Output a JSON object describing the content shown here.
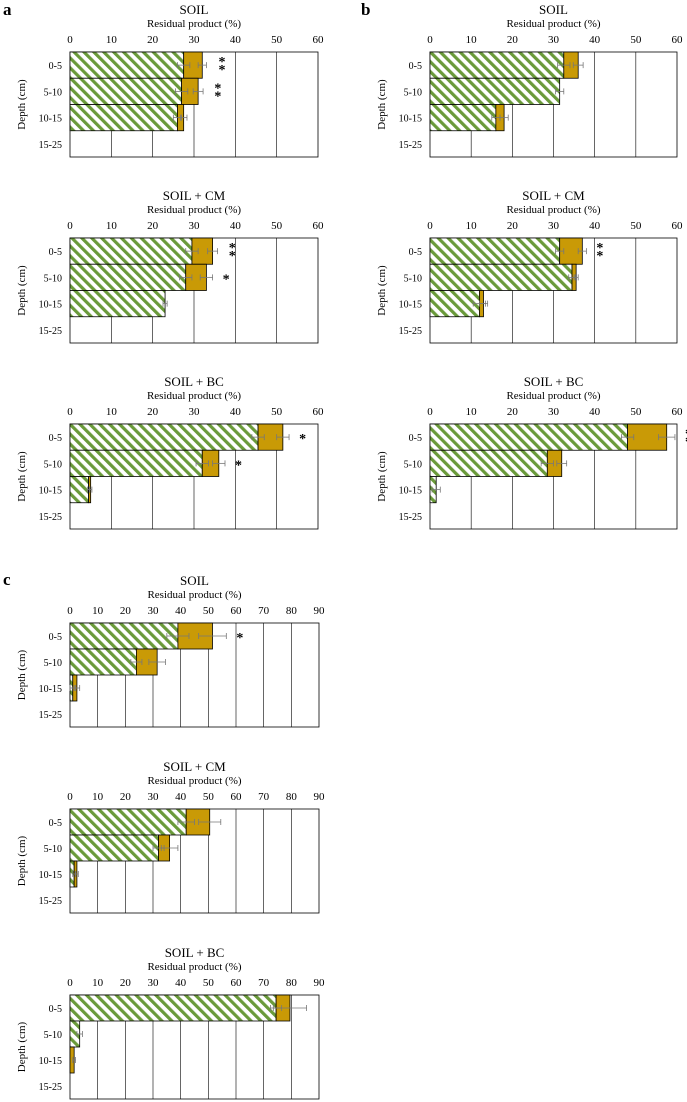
{
  "colors": {
    "hatch_green": "#6a9a3a",
    "gold": "#c99a06",
    "frame": "#000000",
    "grid": "#000000",
    "error_bar": "#777777"
  },
  "chart_data": [
    {
      "panel": "a",
      "type": "bar",
      "orientation": "horizontal",
      "stacked": true,
      "title": "SOIL",
      "xlabel": "Residual product (%)",
      "ylabel": "Depth (cm)",
      "categories": [
        "0-5",
        "5-10",
        "10-15",
        "15-25"
      ],
      "xlim": [
        0,
        60
      ],
      "xticks": [
        0,
        10,
        20,
        30,
        40,
        50,
        60
      ],
      "grid": "vertical",
      "series": [
        {
          "style": "green-hatched",
          "values": [
            27.5,
            27,
            26,
            null
          ],
          "error": [
            1.5,
            1.5,
            1,
            null
          ]
        },
        {
          "style": "gold-solid",
          "values": [
            4.5,
            4,
            1.5,
            null
          ],
          "error": [
            1,
            1.2,
            0.8,
            null
          ]
        }
      ],
      "significance": [
        "**",
        "**",
        "",
        ""
      ]
    },
    {
      "panel": "b",
      "type": "bar",
      "orientation": "horizontal",
      "stacked": true,
      "title": "SOIL",
      "xlabel": "Residual product (%)",
      "ylabel": "Depth (cm)",
      "categories": [
        "0-5",
        "5-10",
        "10-15",
        "15-25"
      ],
      "xlim": [
        0,
        60
      ],
      "xticks": [
        0,
        10,
        20,
        30,
        40,
        50,
        60
      ],
      "grid": "vertical",
      "series": [
        {
          "style": "green-hatched",
          "values": [
            32.5,
            31.5,
            16,
            null
          ],
          "error": [
            1.5,
            1,
            1,
            null
          ]
        },
        {
          "style": "gold-solid",
          "values": [
            3.5,
            0,
            2,
            null
          ],
          "error": [
            1.2,
            0,
            1,
            null
          ]
        }
      ],
      "significance": [
        "",
        "",
        "",
        ""
      ]
    },
    {
      "panel": "a",
      "type": "bar",
      "orientation": "horizontal",
      "stacked": true,
      "title": "SOIL + CM",
      "xlabel": "Residual product (%)",
      "ylabel": "Depth (cm)",
      "categories": [
        "0-5",
        "5-10",
        "10-15",
        "15-25"
      ],
      "xlim": [
        0,
        60
      ],
      "xticks": [
        0,
        10,
        20,
        30,
        40,
        50,
        60
      ],
      "grid": "vertical",
      "series": [
        {
          "style": "green-hatched",
          "values": [
            29.5,
            28,
            23,
            null
          ],
          "error": [
            1.5,
            1.5,
            0.5,
            null
          ]
        },
        {
          "style": "gold-solid",
          "values": [
            5,
            5,
            0,
            null
          ],
          "error": [
            1.2,
            1.5,
            0,
            null
          ]
        }
      ],
      "significance": [
        "**",
        "*",
        "",
        ""
      ]
    },
    {
      "panel": "b",
      "type": "bar",
      "orientation": "horizontal",
      "stacked": true,
      "title": "SOIL + CM",
      "xlabel": "Residual product (%)",
      "ylabel": "Depth (cm)",
      "categories": [
        "0-5",
        "5-10",
        "10-15",
        "15-25"
      ],
      "xlim": [
        0,
        60
      ],
      "xticks": [
        0,
        10,
        20,
        30,
        40,
        50,
        60
      ],
      "grid": "vertical",
      "series": [
        {
          "style": "green-hatched",
          "values": [
            31.5,
            34.5,
            12,
            null
          ],
          "error": [
            1,
            0.8,
            1.5,
            null
          ]
        },
        {
          "style": "gold-solid",
          "values": [
            5.5,
            1,
            1,
            null
          ],
          "error": [
            1,
            0.5,
            1,
            null
          ]
        }
      ],
      "significance": [
        "**",
        "",
        "",
        ""
      ]
    },
    {
      "panel": "a",
      "type": "bar",
      "orientation": "horizontal",
      "stacked": true,
      "title": "SOIL + BC",
      "xlabel": "Residual product (%)",
      "ylabel": "Depth (cm)",
      "categories": [
        "0-5",
        "5-10",
        "10-15",
        "15-25"
      ],
      "xlim": [
        0,
        60
      ],
      "xticks": [
        0,
        10,
        20,
        30,
        40,
        50,
        60
      ],
      "grid": "vertical",
      "series": [
        {
          "style": "green-hatched",
          "values": [
            45.5,
            32,
            4.5,
            null
          ],
          "error": [
            1.5,
            1.5,
            0.3,
            null
          ]
        },
        {
          "style": "gold-solid",
          "values": [
            6,
            4,
            0.5,
            null
          ],
          "error": [
            1.5,
            1.5,
            0.3,
            null
          ]
        }
      ],
      "significance": [
        "*",
        "*",
        "",
        ""
      ]
    },
    {
      "panel": "b",
      "type": "bar",
      "orientation": "horizontal",
      "stacked": true,
      "title": "SOIL + BC",
      "xlabel": "Residual product (%)",
      "ylabel": "Depth (cm)",
      "categories": [
        "0-5",
        "5-10",
        "10-15",
        "15-25"
      ],
      "xlim": [
        0,
        60
      ],
      "xticks": [
        0,
        10,
        20,
        30,
        40,
        50,
        60
      ],
      "grid": "vertical",
      "series": [
        {
          "style": "green-hatched",
          "values": [
            48,
            28.5,
            1.5,
            null
          ],
          "error": [
            1.5,
            1.5,
            1,
            null
          ]
        },
        {
          "style": "gold-solid",
          "values": [
            9.5,
            3.5,
            0,
            null
          ],
          "error": [
            2,
            1.2,
            0,
            null
          ]
        }
      ],
      "significance": [
        "**",
        "",
        "",
        ""
      ]
    },
    {
      "panel": "c",
      "type": "bar",
      "orientation": "horizontal",
      "stacked": true,
      "title": "SOIL",
      "xlabel": "Residual product (%)",
      "ylabel": "Depth (cm)",
      "categories": [
        "0-5",
        "5-10",
        "10-15",
        "15-25"
      ],
      "xlim": [
        0,
        90
      ],
      "xticks": [
        0,
        10,
        20,
        30,
        40,
        50,
        60,
        70,
        80,
        90
      ],
      "grid": "vertical",
      "series": [
        {
          "style": "green-hatched",
          "values": [
            39,
            24,
            1,
            null
          ],
          "error": [
            4,
            2,
            1,
            null
          ]
        },
        {
          "style": "gold-solid",
          "values": [
            12.5,
            7.5,
            1.5,
            null
          ],
          "error": [
            5,
            3,
            1,
            null
          ]
        }
      ],
      "significance": [
        "*",
        "",
        "",
        ""
      ]
    },
    {
      "panel": "c",
      "type": "bar",
      "orientation": "horizontal",
      "stacked": true,
      "title": "SOIL + CM",
      "xlabel": "Residual product (%)",
      "ylabel": "Depth (cm)",
      "categories": [
        "0-5",
        "5-10",
        "10-15",
        "15-25"
      ],
      "xlim": [
        0,
        90
      ],
      "xticks": [
        0,
        10,
        20,
        30,
        40,
        50,
        60,
        70,
        80,
        90
      ],
      "grid": "vertical",
      "series": [
        {
          "style": "green-hatched",
          "values": [
            42,
            32,
            1.5,
            null
          ],
          "error": [
            3,
            2,
            0.5,
            null
          ]
        },
        {
          "style": "gold-solid",
          "values": [
            8.5,
            4,
            1,
            null
          ],
          "error": [
            4,
            3,
            0.5,
            null
          ]
        }
      ],
      "significance": [
        "",
        "",
        "",
        ""
      ]
    },
    {
      "panel": "c",
      "type": "bar",
      "orientation": "horizontal",
      "stacked": true,
      "title": "SOIL + BC",
      "xlabel": "Residual product (%)",
      "ylabel": "Depth (cm)",
      "categories": [
        "0-5",
        "5-10",
        "10-15",
        "15-25"
      ],
      "xlim": [
        0,
        90
      ],
      "xticks": [
        0,
        10,
        20,
        30,
        40,
        50,
        60,
        70,
        80,
        90
      ],
      "grid": "vertical",
      "series": [
        {
          "style": "green-hatched",
          "values": [
            74.5,
            3.5,
            0,
            null
          ],
          "error": [
            2,
            1,
            0,
            null
          ]
        },
        {
          "style": "gold-solid",
          "values": [
            5,
            0,
            1.5,
            null
          ],
          "error": [
            6,
            0,
            0.5,
            null
          ]
        }
      ],
      "significance": [
        "",
        "",
        "",
        ""
      ]
    }
  ],
  "panel_labels": [
    "a",
    "b",
    "c"
  ]
}
